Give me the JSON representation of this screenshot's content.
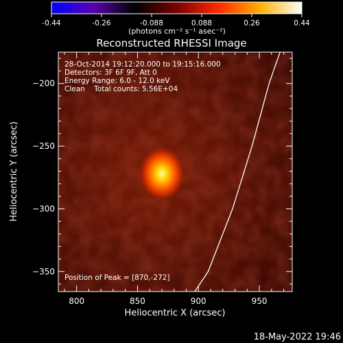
{
  "chart_data": {
    "type": "heatmap",
    "title": "Reconstructed RHESSI Image",
    "xlabel": "Heliocentric X (arcsec)",
    "ylabel": "Heliocentric Y (arcsec)",
    "xlim": [
      785,
      977
    ],
    "ylim": [
      -366,
      -175
    ],
    "x_ticks": [
      800,
      850,
      900,
      950
    ],
    "y_ticks": [
      -200,
      -250,
      -300,
      -350
    ],
    "colorbar": {
      "ticks": [
        "-0.44",
        "-0.26",
        "-0.088",
        "0.088",
        "0.26",
        "0.44"
      ],
      "unit_label": "(photons cm⁻² s⁻¹ asec⁻²)",
      "range": [
        -0.44,
        0.44
      ],
      "stops": [
        "#0000ff",
        "#5a00b0",
        "#000000",
        "#7a0000",
        "#ff2a00",
        "#ffb000",
        "#ffffff"
      ]
    },
    "info_lines": [
      "28-Oct-2014 19:12:20.000 to 19:15:16.000",
      "Detectors: 3F 6F 9F, Att 0",
      "Energy Range: 6.0 - 12.0 keV",
      "Clean    Total counts: 5.56E+04"
    ],
    "peak_label": "Position of Peak = [870,-272]",
    "peak": {
      "x": 870,
      "y": -272
    },
    "limb_curve": [
      [
        967,
        -175
      ],
      [
        958,
        -200
      ],
      [
        944,
        -250
      ],
      [
        928,
        -300
      ],
      [
        908,
        -350
      ],
      [
        897,
        -366
      ]
    ],
    "footer_date": "18-May-2022 19:46"
  }
}
